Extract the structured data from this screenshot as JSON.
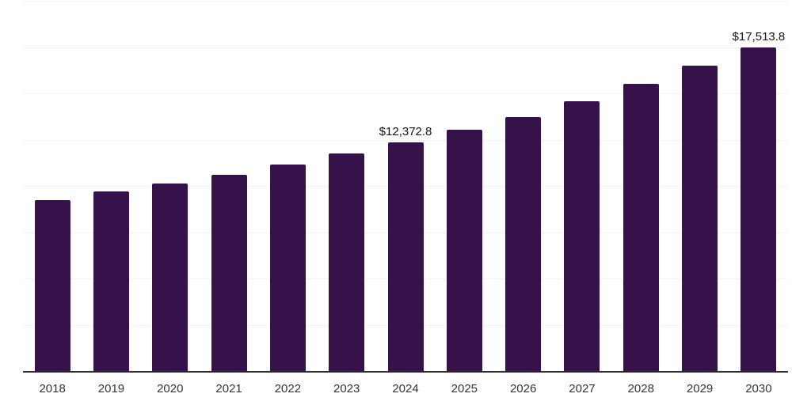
{
  "chart_data": {
    "type": "bar",
    "title": "",
    "xlabel": "",
    "ylabel": "",
    "categories": [
      "2018",
      "2019",
      "2020",
      "2021",
      "2022",
      "2023",
      "2024",
      "2025",
      "2026",
      "2027",
      "2028",
      "2029",
      "2030"
    ],
    "values": [
      9270,
      9740,
      10170,
      10640,
      11200,
      11800,
      12372.8,
      13080,
      13780,
      14620,
      15560,
      16540,
      17513.8
    ],
    "point_labels": {
      "2024": "$12,372.8",
      "2030": "$17,513.8"
    },
    "ylim": [
      0,
      20000
    ],
    "gridline_step": 2500,
    "grid": "horizontal",
    "legend": "none",
    "y_axis_tick_labels_visible": false,
    "colors": {
      "bar": "#36124B",
      "gridline": "#f1f1f2",
      "axis_line": "#2b2b2b",
      "tick_label": "#333333",
      "data_label": "#141414",
      "background": "#ffffff"
    }
  }
}
